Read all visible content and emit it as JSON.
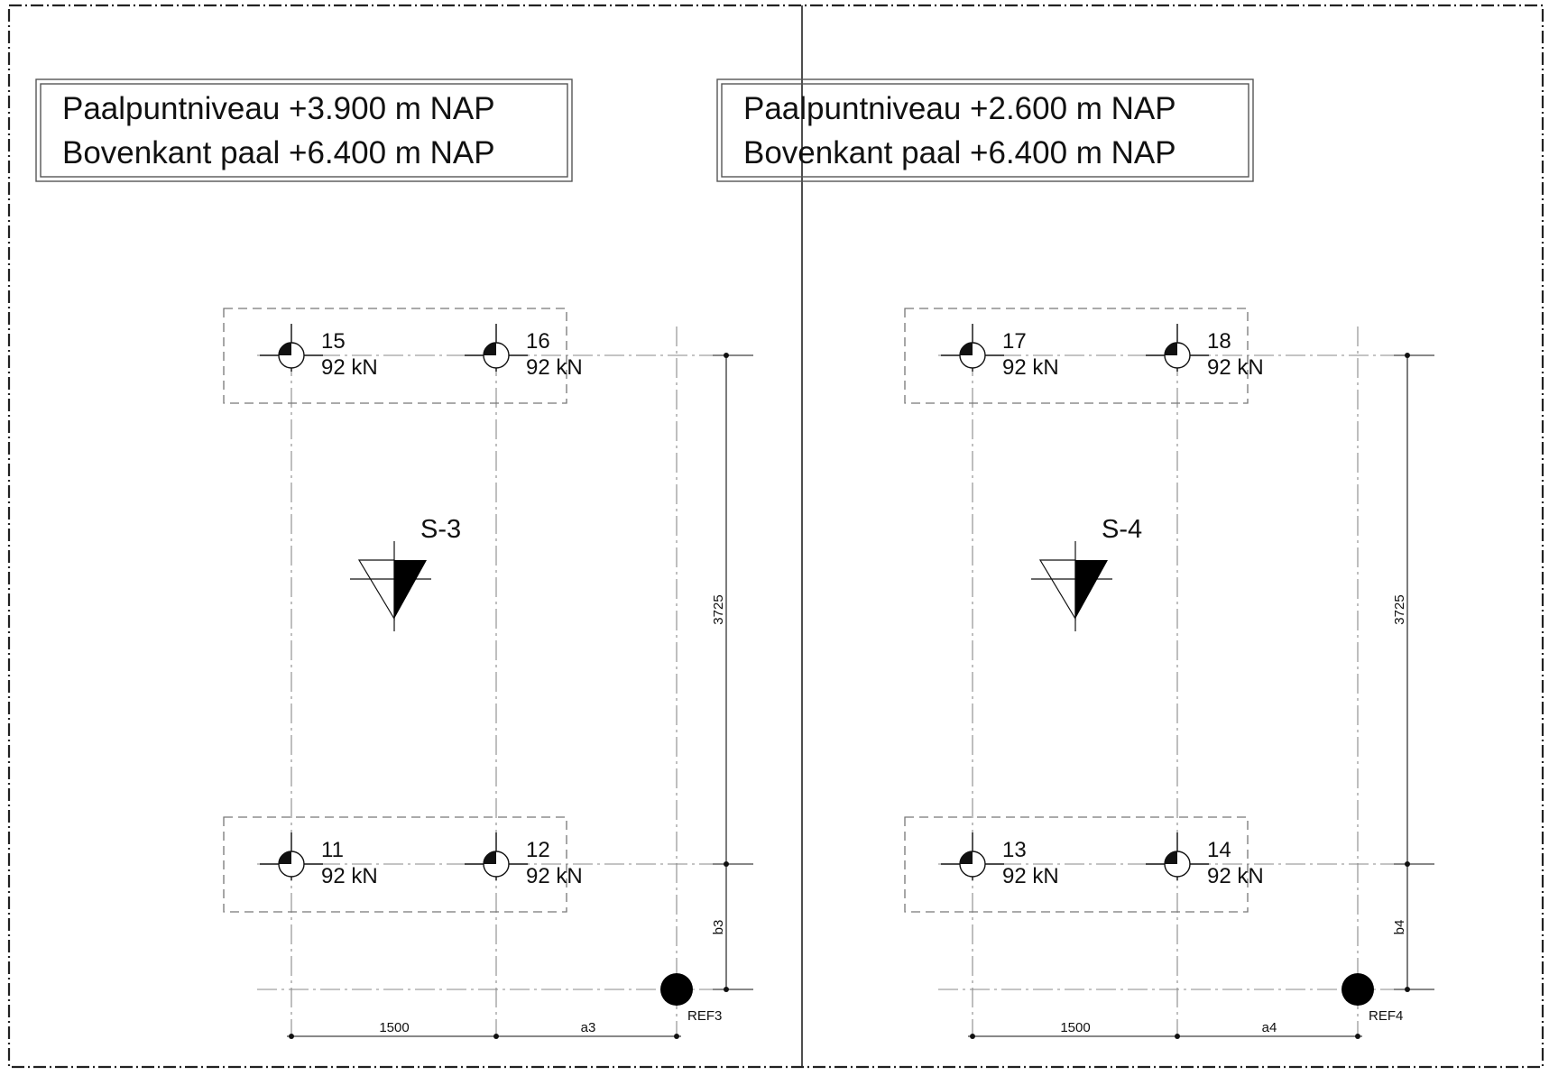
{
  "panels": [
    {
      "id": "left",
      "level_lines": [
        "Paalpuntniveau +3.900 m NAP",
        "Bovenkant paal +6.400 m NAP"
      ],
      "section_label": "S-3",
      "piles": [
        {
          "number": "15",
          "load": "92 kN"
        },
        {
          "number": "16",
          "load": "92 kN"
        },
        {
          "number": "11",
          "load": "92 kN"
        },
        {
          "number": "12",
          "load": "92 kN"
        }
      ],
      "dimensions": {
        "vertical_main": "3725",
        "vertical_ref": "b3",
        "horizontal_main": "1500",
        "horizontal_ref": "a3"
      },
      "ref_label": "REF3"
    },
    {
      "id": "right",
      "level_lines": [
        "Paalpuntniveau +2.600 m NAP",
        "Bovenkant paal +6.400 m NAP"
      ],
      "section_label": "S-4",
      "piles": [
        {
          "number": "17",
          "load": "92 kN"
        },
        {
          "number": "18",
          "load": "92 kN"
        },
        {
          "number": "13",
          "load": "92 kN"
        },
        {
          "number": "14",
          "load": "92 kN"
        }
      ],
      "dimensions": {
        "vertical_main": "3725",
        "vertical_ref": "b4",
        "horizontal_main": "1500",
        "horizontal_ref": "a4"
      },
      "ref_label": "REF4"
    }
  ]
}
